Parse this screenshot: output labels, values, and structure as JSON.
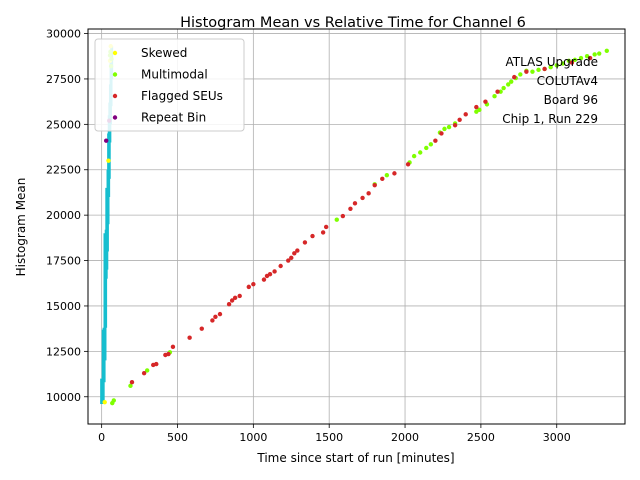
{
  "chart_data": {
    "type": "scatter",
    "title": "Histogram Mean vs Relative Time for Channel 6",
    "xlabel": "Time since start of run [minutes]",
    "ylabel": "Histogram Mean",
    "xlim": [
      -90,
      3450
    ],
    "ylim": [
      8500,
      30250
    ],
    "xticks": [
      0,
      500,
      1000,
      1500,
      2000,
      2500,
      3000
    ],
    "yticks": [
      10000,
      12500,
      15000,
      17500,
      20000,
      22500,
      25000,
      27500,
      30000
    ],
    "grid": true,
    "legend_position": "top-left",
    "annotation": [
      "ATLAS Upgrade",
      "COLUTAv4",
      "Board 96",
      "Chip 1, Run 229"
    ],
    "colors": {
      "normal": "#17becf",
      "skewed": "#ffff00",
      "multimodal": "#7fff00",
      "flagged": "#d62728",
      "repeat": "#800080"
    },
    "series": [
      {
        "name": "Skewed",
        "color": "#ffff00",
        "points": [
          [
            20,
            9700
          ],
          [
            45,
            23000
          ],
          [
            55,
            28500
          ],
          [
            60,
            29300
          ]
        ]
      },
      {
        "name": "Multimodal",
        "color": "#7fff00",
        "points": [
          [
            55,
            28800
          ],
          [
            58,
            29000
          ],
          [
            62,
            28200
          ],
          [
            65,
            28600
          ],
          [
            70,
            9650
          ],
          [
            80,
            9800
          ],
          [
            190,
            10600
          ],
          [
            300,
            11450
          ],
          [
            450,
            12450
          ],
          [
            1550,
            19750
          ],
          [
            1800,
            21700
          ],
          [
            1880,
            22200
          ],
          [
            2030,
            22900
          ],
          [
            2060,
            23250
          ],
          [
            2100,
            23450
          ],
          [
            2140,
            23700
          ],
          [
            2170,
            23900
          ],
          [
            2230,
            24550
          ],
          [
            2260,
            24750
          ],
          [
            2290,
            24850
          ],
          [
            2330,
            25050
          ],
          [
            2470,
            25700
          ],
          [
            2490,
            25800
          ],
          [
            2540,
            26100
          ],
          [
            2590,
            26550
          ],
          [
            2630,
            26800
          ],
          [
            2650,
            27000
          ],
          [
            2680,
            27200
          ],
          [
            2700,
            27350
          ],
          [
            2730,
            27550
          ],
          [
            2760,
            27750
          ],
          [
            2800,
            27950
          ],
          [
            2840,
            27900
          ],
          [
            2880,
            28000
          ],
          [
            2920,
            28050
          ],
          [
            2960,
            28150
          ],
          [
            3000,
            28250
          ],
          [
            3040,
            28350
          ],
          [
            3080,
            28500
          ],
          [
            3120,
            28550
          ],
          [
            3160,
            28650
          ],
          [
            3200,
            28750
          ],
          [
            3250,
            28850
          ],
          [
            3280,
            28900
          ],
          [
            3330,
            29050
          ]
        ]
      },
      {
        "name": "Flagged SEUs",
        "color": "#d62728",
        "points": [
          [
            200,
            10800
          ],
          [
            280,
            11300
          ],
          [
            340,
            11750
          ],
          [
            360,
            11800
          ],
          [
            420,
            12300
          ],
          [
            440,
            12350
          ],
          [
            470,
            12750
          ],
          [
            580,
            13250
          ],
          [
            660,
            13750
          ],
          [
            730,
            14200
          ],
          [
            750,
            14400
          ],
          [
            780,
            14550
          ],
          [
            840,
            15100
          ],
          [
            860,
            15300
          ],
          [
            880,
            15450
          ],
          [
            910,
            15550
          ],
          [
            970,
            16050
          ],
          [
            1000,
            16200
          ],
          [
            1070,
            16450
          ],
          [
            1090,
            16650
          ],
          [
            1110,
            16750
          ],
          [
            1140,
            16900
          ],
          [
            1180,
            17200
          ],
          [
            1230,
            17500
          ],
          [
            1250,
            17650
          ],
          [
            1270,
            17900
          ],
          [
            1290,
            18050
          ],
          [
            1340,
            18500
          ],
          [
            1390,
            18850
          ],
          [
            1460,
            19050
          ],
          [
            1480,
            19350
          ],
          [
            1590,
            19950
          ],
          [
            1640,
            20350
          ],
          [
            1670,
            20650
          ],
          [
            1720,
            20950
          ],
          [
            1760,
            21200
          ],
          [
            1800,
            21650
          ],
          [
            1850,
            22000
          ],
          [
            1930,
            22300
          ],
          [
            2020,
            22800
          ],
          [
            2200,
            24100
          ],
          [
            2240,
            24500
          ],
          [
            2330,
            24950
          ],
          [
            2360,
            25250
          ],
          [
            2400,
            25550
          ],
          [
            2470,
            25950
          ],
          [
            2530,
            26250
          ],
          [
            2610,
            26800
          ],
          [
            2720,
            27600
          ],
          [
            2800,
            27900
          ],
          [
            2920,
            28050
          ],
          [
            3100,
            28400
          ],
          [
            3220,
            28650
          ]
        ]
      },
      {
        "name": "Repeat Bin",
        "color": "#800080",
        "points": [
          [
            30,
            24100
          ],
          [
            50,
            25200
          ]
        ]
      },
      {
        "name": "",
        "color": "#17becf",
        "segments": [
          [
            0,
            9600,
            11000
          ],
          [
            6,
            9650,
            10500
          ],
          [
            10,
            9800,
            13700
          ],
          [
            16,
            10800,
            13800
          ],
          [
            22,
            12000,
            19000
          ],
          [
            26,
            13800,
            16800
          ],
          [
            30,
            16500,
            19200
          ],
          [
            34,
            17000,
            21500
          ],
          [
            38,
            18000,
            20500
          ],
          [
            42,
            19500,
            22500
          ],
          [
            46,
            21000,
            24500
          ],
          [
            50,
            22000,
            25500
          ],
          [
            54,
            24000,
            26200
          ],
          [
            58,
            25000,
            27200
          ],
          [
            62,
            26000,
            28500
          ],
          [
            66,
            27500,
            29300
          ]
        ]
      }
    ]
  }
}
